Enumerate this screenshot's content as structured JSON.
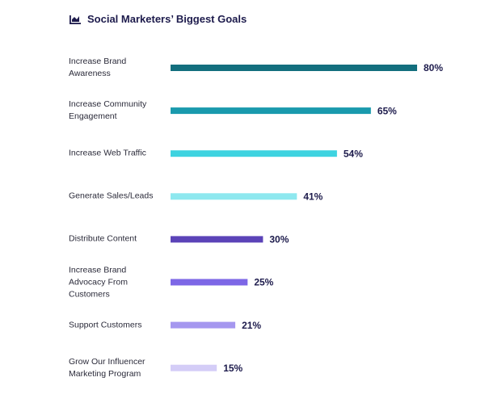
{
  "chart_data": {
    "type": "bar",
    "orientation": "horizontal",
    "title": "Social Marketers’ Biggest Goals",
    "categories": [
      "Increase Brand Awareness",
      "Increase Community Engagement",
      "Increase Web Traffic",
      "Generate Sales/Leads",
      "Distribute Content",
      "Increase Brand Advocacy From Customers",
      "Support Customers",
      "Grow Our Influencer Marketing Program"
    ],
    "values": [
      80,
      65,
      54,
      41,
      30,
      25,
      21,
      15
    ],
    "value_labels": [
      "80%",
      "65%",
      "54%",
      "41%",
      "30%",
      "25%",
      "21%",
      "15%"
    ],
    "colors": [
      "#136f7e",
      "#1a9aad",
      "#3ed3e0",
      "#8ee8ef",
      "#5b43b8",
      "#7d67e6",
      "#a597ef",
      "#d4cdf7"
    ]
  }
}
